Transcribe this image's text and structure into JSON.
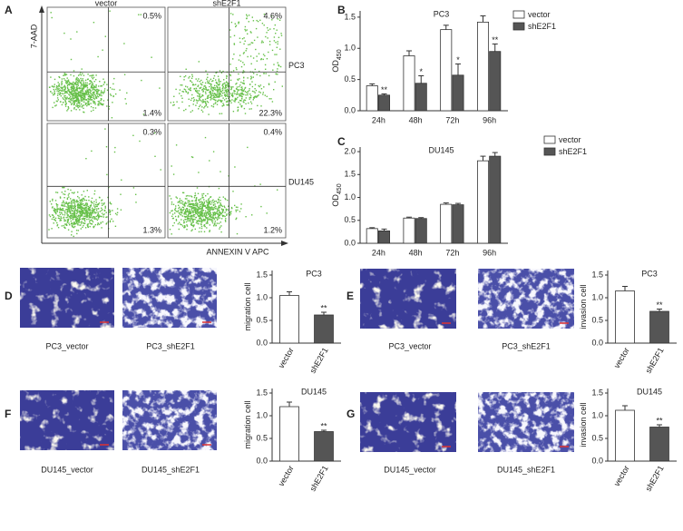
{
  "panels": [
    "A",
    "B",
    "C",
    "D",
    "E",
    "F",
    "G"
  ],
  "flow": {
    "y_label": "7-AAD",
    "x_label": "ANNEXIN V APC",
    "columns": [
      "vector",
      "shE2F1"
    ],
    "rows": [
      {
        "label": "PC3",
        "upper_right": [
          "0.5%",
          "4.6%"
        ],
        "lower_right": [
          "1.4%",
          "22.3%"
        ]
      },
      {
        "label": "DU145",
        "upper_right": [
          "0.3%",
          "0.4%"
        ],
        "lower_right": [
          "1.3%",
          "1.2%"
        ]
      }
    ]
  },
  "image_panels": [
    {
      "captions": [
        "PC3_vector",
        "PC3_shE2F1"
      ]
    },
    {
      "captions": [
        "PC3_vector",
        "PC3_shE2F1"
      ]
    },
    {
      "captions": [
        "DU145_vector",
        "DU145_shE2F1"
      ]
    },
    {
      "captions": [
        "DU145_vector",
        "DU145_shE2F1"
      ]
    }
  ],
  "chart_data": [
    {
      "type": "bar",
      "title": "PC3",
      "ylabel": "OD",
      "ylabel_subscript": "450",
      "legend": true,
      "categories": [
        "24h",
        "48h",
        "72h",
        "96h"
      ],
      "series": [
        {
          "name": "vector",
          "color": "#ffffff",
          "values": [
            0.4,
            0.88,
            1.3,
            1.42
          ],
          "errors": [
            0.03,
            0.08,
            0.07,
            0.1
          ]
        },
        {
          "name": "shE2F1",
          "color": "#555555",
          "values": [
            0.25,
            0.44,
            0.57,
            0.95
          ],
          "errors": [
            0.02,
            0.12,
            0.18,
            0.12
          ],
          "annotations": [
            "**",
            "*",
            "*",
            "**"
          ]
        }
      ],
      "ylim": [
        0,
        1.6
      ],
      "yticks": [
        {
          "value": 0,
          "label": "0.0"
        },
        {
          "value": 0.5,
          "label": "0.5"
        },
        {
          "value": 1,
          "label": "1.0"
        },
        {
          "value": 1.5,
          "label": "1.5"
        }
      ]
    },
    {
      "type": "bar",
      "title": "DU145",
      "ylabel": "OD",
      "ylabel_subscript": "450",
      "legend": true,
      "categories": [
        "24h",
        "48h",
        "72h",
        "96h"
      ],
      "series": [
        {
          "name": "vector",
          "color": "#ffffff",
          "values": [
            0.32,
            0.55,
            0.85,
            1.8
          ],
          "errors": [
            0.02,
            0.02,
            0.03,
            0.1
          ]
        },
        {
          "name": "shE2F1",
          "color": "#555555",
          "values": [
            0.27,
            0.54,
            0.84,
            1.9
          ],
          "errors": [
            0.04,
            0.02,
            0.03,
            0.08
          ]
        }
      ],
      "ylim": [
        0,
        2.1
      ],
      "yticks": [
        {
          "value": 0,
          "label": "0.0"
        },
        {
          "value": 0.5,
          "label": "0.5"
        },
        {
          "value": 1,
          "label": "1.0"
        },
        {
          "value": 1.5,
          "label": "1.5"
        },
        {
          "value": 2,
          "label": "2.0"
        }
      ]
    },
    {
      "type": "bar",
      "title": "PC3",
      "ylabel": "migration cell",
      "categories": [
        "vector",
        "shE2F1"
      ],
      "series": [
        {
          "colors": [
            "#ffffff",
            "#555555"
          ],
          "values": [
            1.05,
            0.62
          ],
          "errors": [
            0.08,
            0.06
          ],
          "annotations": [
            null,
            "**"
          ]
        }
      ],
      "ylim": [
        0,
        1.6
      ],
      "yticks": [
        {
          "value": 0,
          "label": "0.0"
        },
        {
          "value": 0.5,
          "label": "0.5"
        },
        {
          "value": 1,
          "label": "1.0"
        },
        {
          "value": 1.5,
          "label": "1.5"
        }
      ]
    },
    {
      "type": "bar",
      "title": "PC3",
      "ylabel": "invasion cell",
      "categories": [
        "vector",
        "shE2F1"
      ],
      "series": [
        {
          "colors": [
            "#ffffff",
            "#555555"
          ],
          "values": [
            1.15,
            0.7
          ],
          "errors": [
            0.1,
            0.05
          ],
          "annotations": [
            null,
            "**"
          ]
        }
      ],
      "ylim": [
        0,
        1.6
      ],
      "yticks": [
        {
          "value": 0,
          "label": "0.0"
        },
        {
          "value": 0.5,
          "label": "0.5"
        },
        {
          "value": 1,
          "label": "1.0"
        },
        {
          "value": 1.5,
          "label": "1.5"
        }
      ]
    },
    {
      "type": "bar",
      "title": "DU145",
      "ylabel": "migration cell",
      "categories": [
        "vector",
        "shE2F1"
      ],
      "series": [
        {
          "colors": [
            "#ffffff",
            "#555555"
          ],
          "values": [
            1.2,
            0.65
          ],
          "errors": [
            0.1,
            0.03
          ],
          "annotations": [
            null,
            "**"
          ]
        }
      ],
      "ylim": [
        0,
        1.6
      ],
      "yticks": [
        {
          "value": 0,
          "label": "0.0"
        },
        {
          "value": 0.5,
          "label": "0.5"
        },
        {
          "value": 1,
          "label": "1.0"
        },
        {
          "value": 1.5,
          "label": "1.5"
        }
      ]
    },
    {
      "type": "bar",
      "title": "DU145",
      "ylabel": "invasion cell",
      "categories": [
        "vector",
        "shE2F1"
      ],
      "series": [
        {
          "colors": [
            "#ffffff",
            "#555555"
          ],
          "values": [
            1.12,
            0.75
          ],
          "errors": [
            0.1,
            0.05
          ],
          "annotations": [
            null,
            "**"
          ]
        }
      ],
      "ylim": [
        0,
        1.6
      ],
      "yticks": [
        {
          "value": 0,
          "label": "0.0"
        },
        {
          "value": 0.5,
          "label": "0.5"
        },
        {
          "value": 1,
          "label": "1.0"
        },
        {
          "value": 1.5,
          "label": "1.5"
        }
      ]
    }
  ]
}
